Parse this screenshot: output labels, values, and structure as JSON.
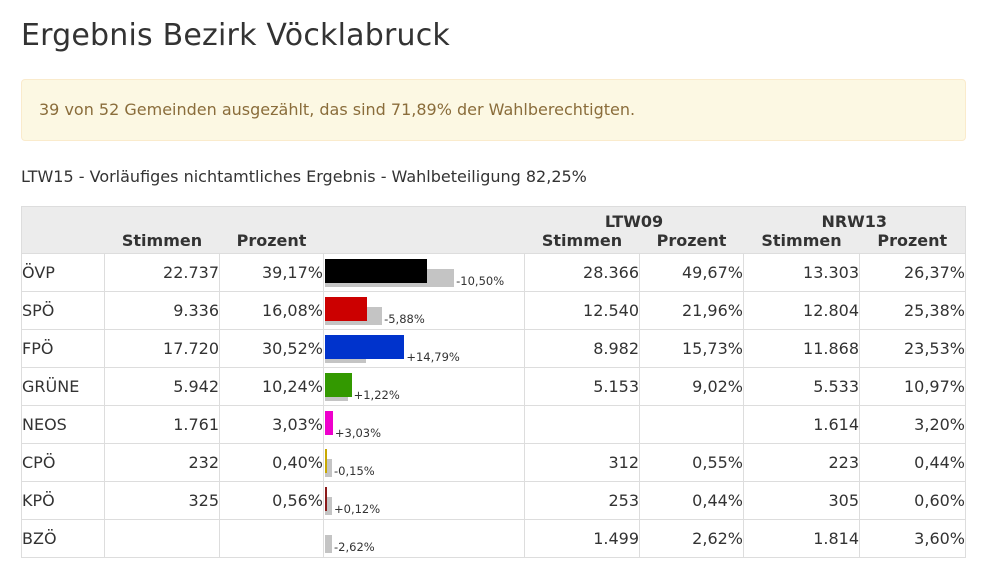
{
  "title": "Ergebnis Bezirk Vöcklabruck",
  "alert": "39 von 52 Gemeinden ausgezählt, das sind 71,89% der Wahlberechtigten.",
  "subtitle": "LTW15 - Vorläufiges nichtamtliches Ergebnis - Wahlbeteiligung 82,25%",
  "table": {
    "group_headers": {
      "ltw09": "LTW09",
      "nrw13": "NRW13"
    },
    "col_stimmen": "Stimmen",
    "col_prozent": "Prozent",
    "rows": [
      {
        "party": "ÖVP",
        "stimmen": "22.737",
        "prozent": "39,17%",
        "pct": 39.17,
        "prev_pct": 49.67,
        "diff": "-10,50%",
        "color": "#000000",
        "ltw09_stimmen": "28.366",
        "ltw09_prozent": "49,67%",
        "nrw13_stimmen": "13.303",
        "nrw13_prozent": "26,37%"
      },
      {
        "party": "SPÖ",
        "stimmen": "9.336",
        "prozent": "16,08%",
        "pct": 16.08,
        "prev_pct": 21.96,
        "diff": "-5,88%",
        "color": "#cc0000",
        "ltw09_stimmen": "12.540",
        "ltw09_prozent": "21,96%",
        "nrw13_stimmen": "12.804",
        "nrw13_prozent": "25,38%"
      },
      {
        "party": "FPÖ",
        "stimmen": "17.720",
        "prozent": "30,52%",
        "pct": 30.52,
        "prev_pct": 15.73,
        "diff": "+14,79%",
        "color": "#0033cc",
        "ltw09_stimmen": "8.982",
        "ltw09_prozent": "15,73%",
        "nrw13_stimmen": "11.868",
        "nrw13_prozent": "23,53%"
      },
      {
        "party": "GRÜNE",
        "stimmen": "5.942",
        "prozent": "10,24%",
        "pct": 10.24,
        "prev_pct": 9.02,
        "diff": "+1,22%",
        "color": "#339900",
        "ltw09_stimmen": "5.153",
        "ltw09_prozent": "9,02%",
        "nrw13_stimmen": "5.533",
        "nrw13_prozent": "10,97%"
      },
      {
        "party": "NEOS",
        "stimmen": "1.761",
        "prozent": "3,03%",
        "pct": 3.03,
        "prev_pct": 0,
        "diff": "+3,03%",
        "color": "#ee00cc",
        "ltw09_stimmen": "",
        "ltw09_prozent": "",
        "nrw13_stimmen": "1.614",
        "nrw13_prozent": "3,20%"
      },
      {
        "party": "CPÖ",
        "stimmen": "232",
        "prozent": "0,40%",
        "pct": 0.4,
        "prev_pct": 0.55,
        "diff": "-0,15%",
        "color": "#c8a800",
        "ltw09_stimmen": "312",
        "ltw09_prozent": "0,55%",
        "nrw13_stimmen": "223",
        "nrw13_prozent": "0,44%"
      },
      {
        "party": "KPÖ",
        "stimmen": "325",
        "prozent": "0,56%",
        "pct": 0.56,
        "prev_pct": 0.44,
        "diff": "+0,12%",
        "color": "#8b1a1a",
        "ltw09_stimmen": "253",
        "ltw09_prozent": "0,44%",
        "nrw13_stimmen": "305",
        "nrw13_prozent": "0,60%"
      },
      {
        "party": "BZÖ",
        "stimmen": "",
        "prozent": "",
        "pct": 0,
        "prev_pct": 2.62,
        "diff": "-2,62%",
        "color": "#ff8800",
        "ltw09_stimmen": "1.499",
        "ltw09_prozent": "2,62%",
        "nrw13_stimmen": "1.814",
        "nrw13_prozent": "3,60%"
      }
    ]
  }
}
